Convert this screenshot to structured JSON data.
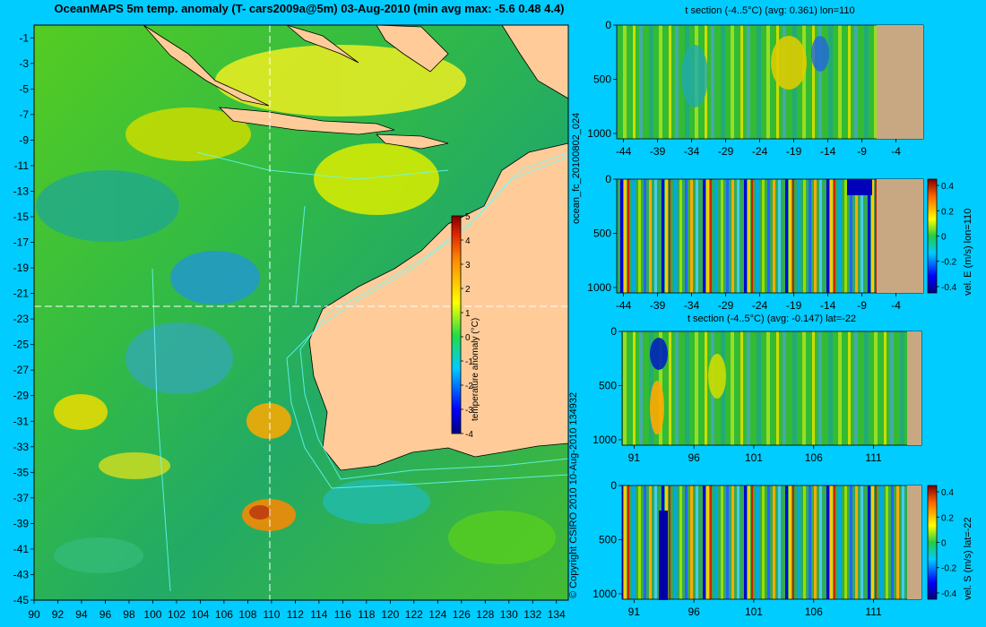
{
  "main_title": "OceanMAPS 5m temp. anomaly (T- cars2009a@5m) 03-Aug-2010 (min avg max: -5.6 0.48 4.4)",
  "side_text_forecast": "ocean_fc_20100802_024",
  "side_text_copyright": "© Copyright CSIRO 2010    10-Aug-2010 134932",
  "colors": {
    "background": "#00ccff",
    "land": "#ffcc99",
    "section_land": "#c8a882",
    "contours": "#66ffff"
  },
  "chart_data": [
    {
      "type": "heatmap",
      "name": "map",
      "x_ticks": [
        "90",
        "92",
        "94",
        "96",
        "98",
        "100",
        "102",
        "104",
        "106",
        "108",
        "110",
        "112",
        "114",
        "116",
        "118",
        "120",
        "122",
        "124",
        "126",
        "128",
        "130",
        "132",
        "134"
      ],
      "y_ticks": [
        "-1",
        "-3",
        "-5",
        "-7",
        "-9",
        "-11",
        "-13",
        "-15",
        "-17",
        "-19",
        "-21",
        "-23",
        "-25",
        "-27",
        "-29",
        "-31",
        "-33",
        "-35",
        "-37",
        "-39",
        "-41",
        "-43",
        "-45"
      ],
      "xlim": [
        90,
        135
      ],
      "ylim": [
        -45,
        0
      ],
      "section_lon": 110,
      "section_lat": -22,
      "colorbar": {
        "label": "temperature anomaly (°C)",
        "ticks": [
          "5",
          "4",
          "3",
          "2",
          "1",
          "0",
          "-1",
          "-2",
          "-3",
          "-4"
        ],
        "range": [
          -4,
          5
        ]
      }
    },
    {
      "type": "heatmap",
      "name": "t-section-lon",
      "title": "t section (-4..5°C) (avg: 0.361) lon=110",
      "x_ticks": [
        "-44",
        "-39",
        "-34",
        "-29",
        "-24",
        "-19",
        "-14",
        "-9",
        "-4"
      ],
      "y_ticks": [
        "0",
        "500",
        "1000"
      ]
    },
    {
      "type": "heatmap",
      "name": "vel-e-section",
      "x_ticks": [
        "-44",
        "-39",
        "-34",
        "-29",
        "-24",
        "-19",
        "-14",
        "-9",
        "-4"
      ],
      "y_ticks": [
        "0",
        "500",
        "1000"
      ],
      "colorbar": {
        "label": "vel. E (m/s) lon=110",
        "ticks": [
          "0.4",
          "0.2",
          "0",
          "-0.2",
          "-0.4"
        ],
        "range": [
          -0.45,
          0.45
        ]
      }
    },
    {
      "type": "heatmap",
      "name": "t-section-lat",
      "title": "t section (-4..5°C) (avg: -0.147) lat=-22",
      "x_ticks": [
        "91",
        "96",
        "101",
        "106",
        "111"
      ],
      "y_ticks": [
        "0",
        "500",
        "1000"
      ]
    },
    {
      "type": "heatmap",
      "name": "vel-s-section",
      "x_ticks": [
        "91",
        "96",
        "101",
        "106",
        "111"
      ],
      "y_ticks": [
        "0",
        "500",
        "1000"
      ],
      "colorbar": {
        "label": "vel. S (m/s) lat=-22",
        "ticks": [
          "0.4",
          "0.2",
          "0",
          "-0.2",
          "-0.4"
        ],
        "range": [
          -0.45,
          0.45
        ]
      }
    }
  ]
}
